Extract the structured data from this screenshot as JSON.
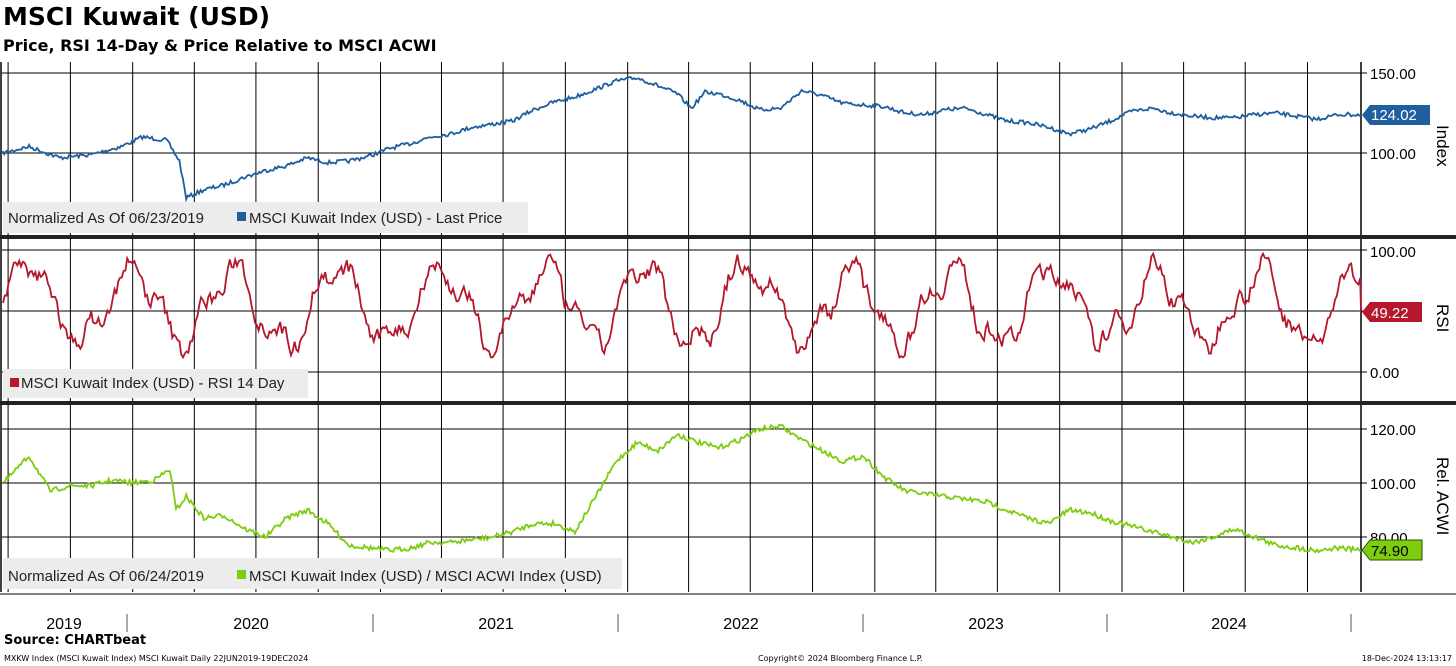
{
  "title": "MSCI Kuwait (USD)",
  "subtitle": "Price, RSI 14-Day & Price Relative to MSCI ACWI",
  "source": "Source: CHARTbeat",
  "footer": {
    "left": "MXKW Index (MSCI Kuwait Index) MSCI Kuwait  Daily 22JUN2019-19DEC2024",
    "center": "Copyright© 2024 Bloomberg Finance L.P.",
    "right": "18-Dec-2024 13:13:17"
  },
  "x_axis": {
    "years": [
      "2019",
      "2020",
      "2021",
      "2022",
      "2023",
      "2024"
    ],
    "start": "2019-06-22",
    "end": "2024-12-19"
  },
  "colors": {
    "price": "#1f5fa0",
    "rsi": "#b5172c",
    "relative": "#7dcc10",
    "grid": "#000000"
  },
  "chart_data": [
    {
      "type": "line",
      "panel": "price",
      "axis_title": "Index",
      "yticks": [
        "150.00",
        "100.00"
      ],
      "ylim": [
        47,
        158
      ],
      "legend_note": "Normalized As Of 06/23/2019",
      "series": [
        {
          "name": "MSCI Kuwait Index (USD) - Last Price",
          "last_value_label": "124.02",
          "x": [
            "2019-06-23",
            "2019-08-01",
            "2019-09-15",
            "2019-11-01",
            "2019-12-15",
            "2020-01-15",
            "2020-02-20",
            "2020-03-10",
            "2020-03-20",
            "2020-04-15",
            "2020-05-15",
            "2020-06-15",
            "2020-07-15",
            "2020-08-15",
            "2020-09-15",
            "2020-10-15",
            "2020-11-15",
            "2020-12-15",
            "2021-01-15",
            "2021-02-15",
            "2021-03-15",
            "2021-04-15",
            "2021-05-15",
            "2021-06-15",
            "2021-07-15",
            "2021-08-15",
            "2021-09-15",
            "2021-10-15",
            "2021-11-15",
            "2021-12-15",
            "2022-01-15",
            "2022-02-15",
            "2022-03-15",
            "2022-04-05",
            "2022-04-25",
            "2022-05-15",
            "2022-06-15",
            "2022-07-15",
            "2022-08-15",
            "2022-09-15",
            "2022-10-15",
            "2022-11-15",
            "2022-12-15",
            "2023-01-15",
            "2023-02-15",
            "2023-03-15",
            "2023-04-15",
            "2023-05-15",
            "2023-06-15",
            "2023-07-15",
            "2023-08-15",
            "2023-09-15",
            "2023-10-15",
            "2023-11-15",
            "2023-12-15",
            "2024-01-15",
            "2024-02-15",
            "2024-03-15",
            "2024-04-15",
            "2024-05-15",
            "2024-06-15",
            "2024-07-15",
            "2024-08-15",
            "2024-09-15",
            "2024-10-15",
            "2024-11-15",
            "2024-12-19"
          ],
          "y": [
            100,
            104,
            97,
            99,
            104,
            110,
            108,
            95,
            72,
            77,
            80,
            85,
            89,
            92,
            97,
            94,
            95,
            98,
            103,
            106,
            110,
            112,
            116,
            118,
            120,
            127,
            132,
            135,
            140,
            145,
            147,
            142,
            137,
            128,
            138,
            137,
            133,
            127,
            128,
            139,
            136,
            131,
            130,
            129,
            125,
            124,
            127,
            128,
            124,
            120,
            119,
            116,
            112,
            115,
            120,
            126,
            128,
            125,
            123,
            122,
            122,
            124,
            125,
            123,
            121,
            124,
            124
          ]
        }
      ]
    },
    {
      "type": "line",
      "panel": "rsi",
      "axis_title": "RSI",
      "yticks": [
        "100.00",
        "0.00"
      ],
      "ylim": [
        -12,
        104
      ],
      "series": [
        {
          "name": "MSCI Kuwait Index (USD) - RSI 14 Day",
          "last_value_label": "49.22"
        }
      ]
    },
    {
      "type": "line",
      "panel": "relative",
      "axis_title": "Rel. ACWI",
      "yticks": [
        "120.00",
        "100.00",
        "80.00"
      ],
      "ylim": [
        66,
        128
      ],
      "legend_note": "Normalized As Of 06/24/2019",
      "series": [
        {
          "name": "MSCI Kuwait Index (USD) / MSCI ACWI Index (USD)",
          "last_value_label": "74.90",
          "x": [
            "2019-06-24",
            "2019-08-01",
            "2019-09-01",
            "2019-10-01",
            "2019-11-01",
            "2019-12-01",
            "2020-01-01",
            "2020-02-01",
            "2020-02-25",
            "2020-03-05",
            "2020-03-20",
            "2020-04-15",
            "2020-05-15",
            "2020-06-15",
            "2020-07-15",
            "2020-08-15",
            "2020-09-15",
            "2020-10-15",
            "2020-11-15",
            "2020-12-15",
            "2021-01-15",
            "2021-02-15",
            "2021-03-15",
            "2021-04-15",
            "2021-05-15",
            "2021-06-15",
            "2021-07-15",
            "2021-08-15",
            "2021-09-15",
            "2021-10-15",
            "2021-11-15",
            "2021-12-15",
            "2022-01-15",
            "2022-02-15",
            "2022-03-15",
            "2022-04-15",
            "2022-05-15",
            "2022-06-15",
            "2022-07-15",
            "2022-08-15",
            "2022-09-15",
            "2022-10-15",
            "2022-11-15",
            "2022-12-15",
            "2023-01-15",
            "2023-02-15",
            "2023-03-15",
            "2023-04-15",
            "2023-05-15",
            "2023-06-15",
            "2023-07-15",
            "2023-08-15",
            "2023-09-15",
            "2023-10-15",
            "2023-11-15",
            "2023-12-15",
            "2024-01-15",
            "2024-02-15",
            "2024-03-15",
            "2024-04-15",
            "2024-05-15",
            "2024-06-15",
            "2024-07-15",
            "2024-08-15",
            "2024-09-15",
            "2024-10-15",
            "2024-11-15",
            "2024-12-19"
          ],
          "y": [
            100,
            110,
            97,
            99,
            99,
            101,
            100,
            101,
            105,
            90,
            95,
            87,
            88,
            83,
            80,
            87,
            90,
            85,
            77,
            76,
            75,
            76,
            78,
            78,
            79,
            80,
            82,
            85,
            85,
            82,
            95,
            108,
            115,
            112,
            118,
            115,
            113,
            116,
            120,
            121,
            116,
            112,
            108,
            110,
            102,
            97,
            96,
            95,
            94,
            93,
            90,
            87,
            85,
            90,
            89,
            86,
            84,
            82,
            80,
            78,
            80,
            83,
            80,
            77,
            76,
            75,
            76,
            75
          ]
        }
      ]
    }
  ]
}
